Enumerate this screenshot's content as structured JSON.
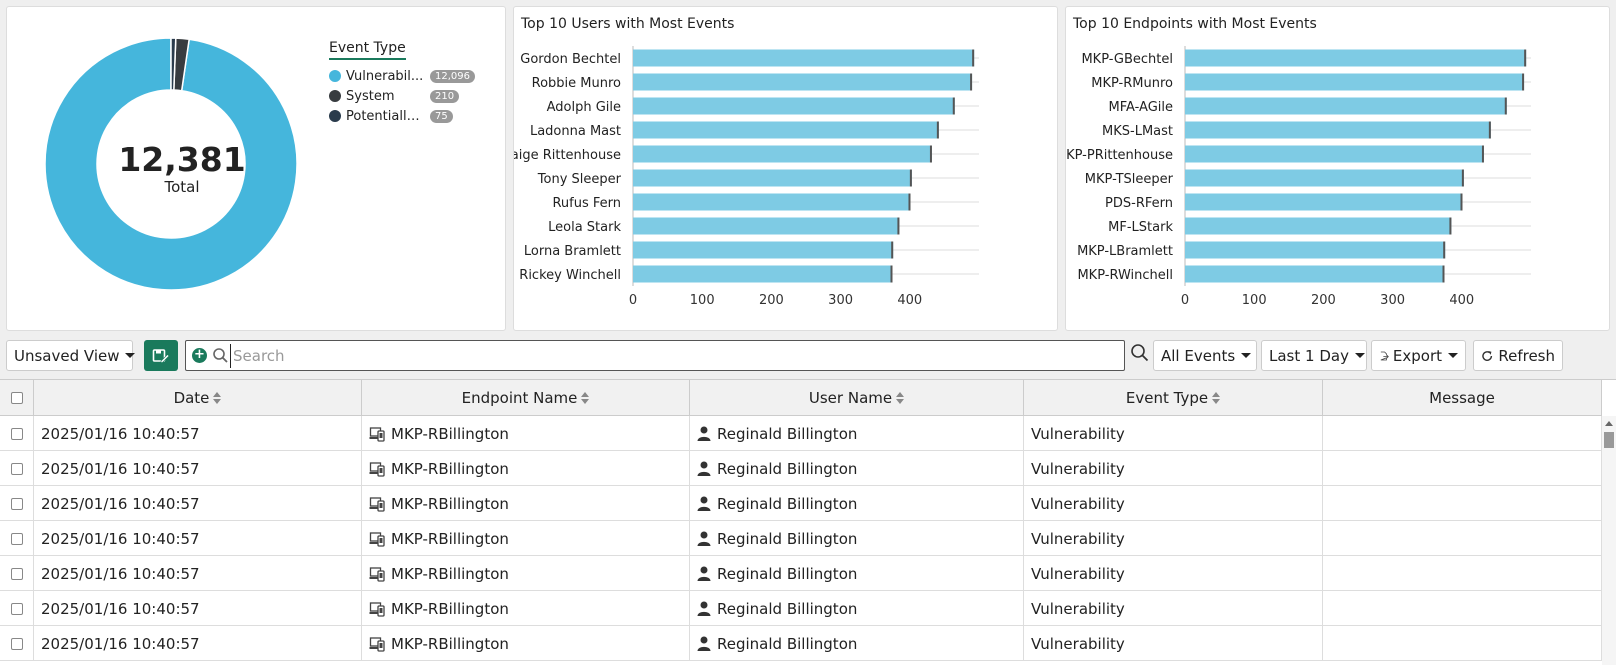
{
  "donut": {
    "total": "12,381",
    "total_label": "Total",
    "legend_title": "Event Type",
    "items": [
      {
        "label": "Vulnerabil...",
        "count": "12,096",
        "value": 12096,
        "color": "#45b6dc"
      },
      {
        "label": "System",
        "count": "210",
        "value": 210,
        "color": "#383c40"
      },
      {
        "label": "Potentially Un...",
        "count": "75",
        "value": 75,
        "color": "#2a3b4c"
      }
    ]
  },
  "users_chart": {
    "title": "Top 10 Users with Most Events"
  },
  "endpoints_chart": {
    "title": "Top 10 Endpoints with Most Events"
  },
  "chart_data": [
    {
      "type": "bar",
      "title": "Top 10 Users with Most Events",
      "orientation": "horizontal",
      "categories": [
        "Gordon Bechtel",
        "Robbie Munro",
        "Adolph Gile",
        "Ladonna Mast",
        "Paige Rittenhouse",
        "Tony Sleeper",
        "Rufus Fern",
        "Leola Stark",
        "Lorna Bramlett",
        "Rickey Winchell"
      ],
      "values": [
        493,
        490,
        465,
        442,
        432,
        403,
        401,
        385,
        376,
        375
      ],
      "xticks": [
        0,
        100,
        200,
        300,
        400
      ],
      "xlim": [
        0,
        500
      ],
      "color": "#7ecbe4",
      "grid": true
    },
    {
      "type": "bar",
      "title": "Top 10 Endpoints with Most Events",
      "orientation": "horizontal",
      "categories": [
        "MKP-GBechtel",
        "MKP-RMunro",
        "MFA-AGile",
        "MKS-LMast",
        "MKP-PRittenhouse",
        "MKP-TSleeper",
        "PDS-RFern",
        "MF-LStark",
        "MKP-LBramlett",
        "MKP-RWinchell"
      ],
      "values": [
        493,
        490,
        465,
        442,
        432,
        403,
        401,
        385,
        376,
        375
      ],
      "xticks": [
        0,
        100,
        200,
        300,
        400
      ],
      "xlim": [
        0,
        500
      ],
      "color": "#7ecbe4",
      "grid": true
    }
  ],
  "toolbar": {
    "view_label": "Unsaved View",
    "search_placeholder": "Search",
    "search_value": "",
    "events_filter": "All Events",
    "time_filter": "Last 1 Day",
    "export_label": "Export",
    "refresh_label": "Refresh"
  },
  "table": {
    "columns": [
      "Date",
      "Endpoint Name",
      "User Name",
      "Event Type",
      "Message"
    ],
    "rows": [
      {
        "date": "2025/01/16 10:40:57",
        "endpoint": "MKP-RBillington",
        "user": "Reginald Billington",
        "event": "Vulnerability",
        "message": ""
      },
      {
        "date": "2025/01/16 10:40:57",
        "endpoint": "MKP-RBillington",
        "user": "Reginald Billington",
        "event": "Vulnerability",
        "message": ""
      },
      {
        "date": "2025/01/16 10:40:57",
        "endpoint": "MKP-RBillington",
        "user": "Reginald Billington",
        "event": "Vulnerability",
        "message": ""
      },
      {
        "date": "2025/01/16 10:40:57",
        "endpoint": "MKP-RBillington",
        "user": "Reginald Billington",
        "event": "Vulnerability",
        "message": ""
      },
      {
        "date": "2025/01/16 10:40:57",
        "endpoint": "MKP-RBillington",
        "user": "Reginald Billington",
        "event": "Vulnerability",
        "message": ""
      },
      {
        "date": "2025/01/16 10:40:57",
        "endpoint": "MKP-RBillington",
        "user": "Reginald Billington",
        "event": "Vulnerability",
        "message": ""
      },
      {
        "date": "2025/01/16 10:40:57",
        "endpoint": "MKP-RBillington",
        "user": "Reginald Billington",
        "event": "Vulnerability",
        "message": ""
      }
    ]
  }
}
